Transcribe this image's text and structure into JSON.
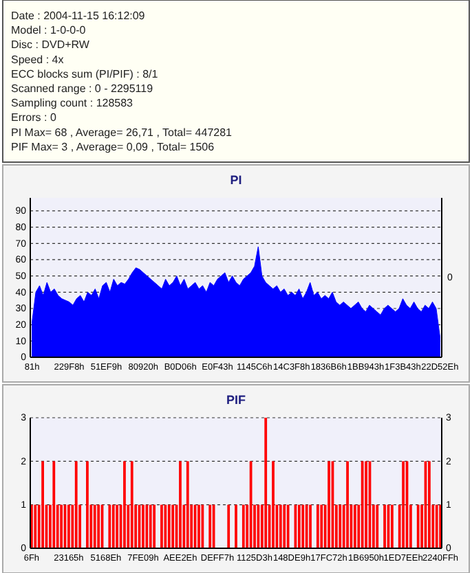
{
  "chart_data": [
    {
      "type": "other",
      "annotations": [
        "Date : 2004-11-15 16:12:09",
        "Model : 1-0-0-0",
        "Disc : DVD+RW",
        "Speed : 4x",
        "ECC blocks sum (PI/PIF) : 8/1",
        "Scanned range : 0 - 2295119",
        "Sampling count : 128583",
        "Errors : 0",
        "PI Max= 68 , Average= 26,71 , Total= 447281",
        "PIF Max= 3 , Average= 0,09 , Total= 1506"
      ]
    },
    {
      "type": "area",
      "title": "PI",
      "color": "#0000ff",
      "grid": "y",
      "ylim": [
        0,
        98
      ],
      "yticks": [
        0,
        10,
        20,
        30,
        40,
        50,
        60,
        70,
        80,
        90
      ],
      "annotations": [
        "0"
      ],
      "categories": [
        "81h",
        null,
        null,
        null,
        null,
        null,
        null,
        null,
        null,
        null,
        "229F8h",
        null,
        null,
        null,
        null,
        null,
        null,
        null,
        null,
        null,
        "51EF9h",
        null,
        null,
        null,
        null,
        null,
        null,
        null,
        null,
        null,
        "80920h",
        null,
        null,
        null,
        null,
        null,
        null,
        null,
        null,
        null,
        "B0D06h",
        null,
        null,
        null,
        null,
        null,
        null,
        null,
        null,
        null,
        "E0F43h",
        null,
        null,
        null,
        null,
        null,
        null,
        null,
        null,
        null,
        "1145C6h",
        null,
        null,
        null,
        null,
        null,
        null,
        null,
        null,
        null,
        "14C3F8h",
        null,
        null,
        null,
        null,
        null,
        null,
        null,
        null,
        null,
        "1836B6h",
        null,
        null,
        null,
        null,
        null,
        null,
        null,
        null,
        null,
        "1BB943h",
        null,
        null,
        null,
        null,
        null,
        null,
        null,
        null,
        null,
        "1F3B43h",
        null,
        null,
        null,
        null,
        null,
        null,
        null,
        null,
        null,
        "22D52Eh"
      ],
      "values": [
        22,
        40,
        44,
        38,
        46,
        40,
        42,
        38,
        36,
        35,
        34,
        32,
        36,
        38,
        34,
        40,
        38,
        42,
        36,
        44,
        46,
        40,
        48,
        44,
        46,
        45,
        48,
        52,
        55,
        54,
        52,
        50,
        48,
        46,
        44,
        42,
        48,
        44,
        46,
        50,
        44,
        48,
        42,
        44,
        46,
        42,
        44,
        40,
        46,
        44,
        48,
        50,
        52,
        46,
        50,
        46,
        44,
        48,
        50,
        52,
        56,
        68,
        50,
        46,
        44,
        42,
        44,
        40,
        42,
        38,
        40,
        38,
        42,
        36,
        40,
        46,
        38,
        40,
        36,
        38,
        36,
        40,
        34,
        32,
        34,
        32,
        30,
        32,
        34,
        30,
        28,
        32,
        30,
        28,
        26,
        30,
        32,
        30,
        28,
        30,
        36,
        32,
        30,
        34,
        30,
        28,
        32,
        30,
        34,
        30,
        13
      ]
    },
    {
      "type": "bar",
      "title": "PIF",
      "color": "#ff0000",
      "grid": "y",
      "ylim": [
        0,
        3
      ],
      "yticks": [
        0,
        1,
        2,
        3
      ],
      "y2lim": [
        0,
        3
      ],
      "y2ticks": [
        0,
        1,
        2,
        3
      ],
      "categories": [
        "6Fh",
        null,
        null,
        null,
        null,
        null,
        null,
        null,
        null,
        null,
        "23165h",
        null,
        null,
        null,
        null,
        null,
        null,
        null,
        null,
        null,
        "5168Eh",
        null,
        null,
        null,
        null,
        null,
        null,
        null,
        null,
        null,
        "7FE09h",
        null,
        null,
        null,
        null,
        null,
        null,
        null,
        null,
        null,
        "AEE2Eh",
        null,
        null,
        null,
        null,
        null,
        null,
        null,
        null,
        null,
        "DEFF7h",
        null,
        null,
        null,
        null,
        null,
        null,
        null,
        null,
        null,
        "1125D3h",
        null,
        null,
        null,
        null,
        null,
        null,
        null,
        null,
        null,
        "148DE9h",
        null,
        null,
        null,
        null,
        null,
        null,
        null,
        null,
        null,
        "17FC72h",
        null,
        null,
        null,
        null,
        null,
        null,
        null,
        null,
        null,
        "1B6950h",
        null,
        null,
        null,
        null,
        null,
        null,
        null,
        null,
        null,
        "1ED7EEh",
        null,
        null,
        null,
        null,
        null,
        null,
        null,
        null,
        null,
        "2240FFh"
      ],
      "values": [
        1,
        1,
        1,
        2,
        1,
        1,
        2,
        1,
        1,
        1,
        1,
        1,
        2,
        1,
        0,
        2,
        1,
        1,
        1,
        1,
        0,
        1,
        1,
        1,
        1,
        2,
        1,
        2,
        1,
        1,
        1,
        1,
        1,
        1,
        0,
        1,
        1,
        1,
        1,
        1,
        2,
        1,
        2,
        1,
        1,
        1,
        1,
        0,
        1,
        1,
        0,
        0,
        0,
        1,
        0,
        1,
        0,
        1,
        1,
        2,
        1,
        1,
        1,
        3,
        1,
        2,
        1,
        1,
        1,
        1,
        0,
        1,
        1,
        1,
        1,
        1,
        0,
        1,
        1,
        1,
        2,
        2,
        1,
        1,
        1,
        2,
        1,
        1,
        1,
        2,
        2,
        2,
        1,
        1,
        0,
        1,
        1,
        1,
        0,
        1,
        2,
        2,
        1,
        0,
        1,
        1,
        2,
        2,
        1,
        1,
        1
      ]
    }
  ]
}
